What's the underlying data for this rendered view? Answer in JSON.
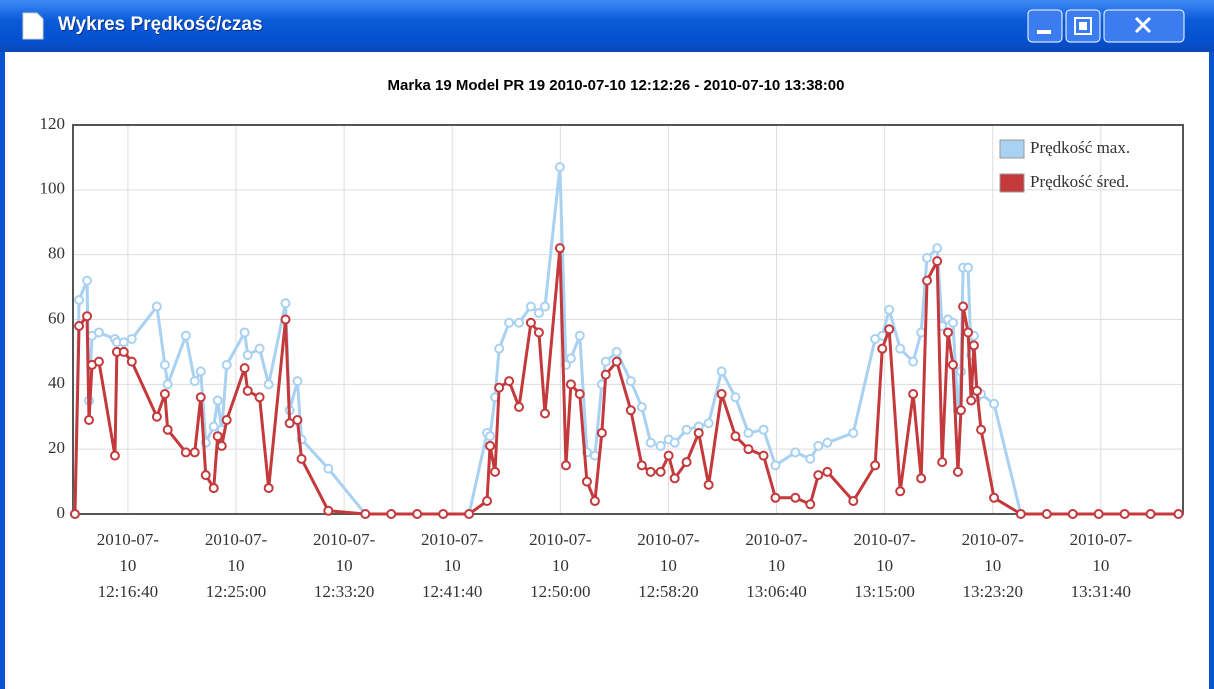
{
  "window": {
    "title": "Wykres Prędkość/czas"
  },
  "chart_data": {
    "type": "line",
    "title": "Marka 19 Model PR 19 2010-07-10 12:12:26 - 2010-07-10 13:38:00",
    "x": [
      "2010-07-10 12:12:35",
      "2010-07-10 12:12:54",
      "2010-07-10 12:13:31",
      "2010-07-10 12:13:40",
      "2010-07-10 12:13:54",
      "2010-07-10 12:14:26",
      "2010-07-10 12:15:40",
      "2010-07-10 12:15:49",
      "2010-07-10 12:16:21",
      "2010-07-10 12:16:58",
      "2010-07-10 12:18:54",
      "2010-07-10 12:19:31",
      "2010-07-10 12:19:44",
      "2010-07-10 12:21:08",
      "2010-07-10 12:21:49",
      "2010-07-10 12:22:17",
      "2010-07-10 12:22:40",
      "2010-07-10 12:23:17",
      "2010-07-10 12:23:35",
      "2010-07-10 12:23:54",
      "2010-07-10 12:24:17",
      "2010-07-10 12:25:40",
      "2010-07-10 12:25:54",
      "2010-07-10 12:26:49",
      "2010-07-10 12:27:31",
      "2010-07-10 12:28:49",
      "2010-07-10 12:29:08",
      "2010-07-10 12:29:44",
      "2010-07-10 12:30:03",
      "2010-07-10 12:32:07",
      "2010-07-10 12:34:58",
      "2010-07-10 12:36:58",
      "2010-07-10 12:38:58",
      "2010-07-10 12:40:58",
      "2010-07-10 12:42:58",
      "2010-07-10 12:44:21",
      "2010-07-10 12:44:35",
      "2010-07-10 12:44:58",
      "2010-07-10 12:45:17",
      "2010-07-10 12:46:03",
      "2010-07-10 12:46:49",
      "2010-07-10 12:47:44",
      "2010-07-10 12:48:21",
      "2010-07-10 12:48:49",
      "2010-07-10 12:49:58",
      "2010-07-10 12:50:26",
      "2010-07-10 12:50:49",
      "2010-07-10 12:51:30",
      "2010-07-10 12:52:03",
      "2010-07-10 12:52:40",
      "2010-07-10 12:53:12",
      "2010-07-10 12:53:30",
      "2010-07-10 12:54:21",
      "2010-07-10 12:55:26",
      "2010-07-10 12:56:17",
      "2010-07-10 12:56:58",
      "2010-07-10 12:57:44",
      "2010-07-10 12:58:21",
      "2010-07-10 12:58:49",
      "2010-07-10 12:59:44",
      "2010-07-10 13:00:40",
      "2010-07-10 13:01:26",
      "2010-07-10 13:02:26",
      "2010-07-10 13:03:30",
      "2010-07-10 13:04:30",
      "2010-07-10 13:05:40",
      "2010-07-10 13:06:35",
      "2010-07-10 13:08:07",
      "2010-07-10 13:09:16",
      "2010-07-10 13:09:53",
      "2010-07-10 13:10:35",
      "2010-07-10 13:12:35",
      "2010-07-10 13:14:16",
      "2010-07-10 13:14:49",
      "2010-07-10 13:15:21",
      "2010-07-10 13:16:12",
      "2010-07-10 13:17:12",
      "2010-07-10 13:17:49",
      "2010-07-10 13:18:16",
      "2010-07-10 13:19:03",
      "2010-07-10 13:19:26",
      "2010-07-10 13:19:53",
      "2010-07-10 13:20:16",
      "2010-07-10 13:20:39",
      "2010-07-10 13:20:53",
      "2010-07-10 13:21:03",
      "2010-07-10 13:21:26",
      "2010-07-10 13:21:40",
      "2010-07-10 13:21:53",
      "2010-07-10 13:22:07",
      "2010-07-10 13:22:26",
      "2010-07-10 13:23:26",
      "2010-07-10 13:25:30",
      "2010-07-10 13:27:30",
      "2010-07-10 13:29:30",
      "2010-07-10 13:31:30",
      "2010-07-10 13:33:30",
      "2010-07-10 13:35:30",
      "2010-07-10 13:37:39"
    ],
    "series": [
      {
        "name": "Prędkość max.",
        "color": "#a9d1f2",
        "values": [
          0,
          66,
          72,
          35,
          55,
          56,
          54,
          53,
          53,
          54,
          64,
          46,
          40,
          55,
          41,
          44,
          22,
          27,
          35,
          26,
          46,
          56,
          49,
          51,
          40,
          65,
          32,
          41,
          23,
          14,
          0,
          0,
          0,
          0,
          0,
          25,
          24,
          36,
          51,
          59,
          59,
          64,
          62,
          64,
          107,
          46,
          48,
          55,
          19,
          18,
          40,
          47,
          50,
          41,
          33,
          22,
          21,
          23,
          22,
          26,
          27,
          28,
          44,
          36,
          25,
          26,
          15,
          19,
          17,
          21,
          22,
          25,
          54,
          55,
          63,
          51,
          47,
          56,
          79,
          82,
          58,
          60,
          59,
          32,
          44,
          76,
          76,
          49,
          55,
          36,
          37,
          34,
          0,
          0,
          0,
          0,
          0,
          0,
          0
        ]
      },
      {
        "name": "Prędkość śred.",
        "color": "#c4393c",
        "values": [
          0,
          58,
          61,
          29,
          46,
          47,
          18,
          50,
          50,
          47,
          30,
          37,
          26,
          19,
          19,
          36,
          12,
          8,
          24,
          21,
          29,
          45,
          38,
          36,
          8,
          60,
          28,
          29,
          17,
          1,
          0,
          0,
          0,
          0,
          0,
          4,
          21,
          13,
          39,
          41,
          33,
          59,
          56,
          31,
          82,
          15,
          40,
          37,
          10,
          4,
          25,
          43,
          47,
          32,
          15,
          13,
          13,
          18,
          11,
          16,
          25,
          9,
          37,
          24,
          20,
          18,
          5,
          5,
          3,
          12,
          13,
          4,
          15,
          51,
          57,
          7,
          37,
          11,
          72,
          78,
          16,
          56,
          46,
          13,
          32,
          64,
          56,
          35,
          52,
          38,
          26,
          5,
          0,
          0,
          0,
          0,
          0,
          0,
          0
        ]
      }
    ],
    "xlim": [
      "2010-07-10 12:12:26",
      "2010-07-10 13:38:00"
    ],
    "xticks": [
      "2010-07-10 12:16:40",
      "2010-07-10 12:25:00",
      "2010-07-10 12:33:20",
      "2010-07-10 12:41:40",
      "2010-07-10 12:50:00",
      "2010-07-10 12:58:20",
      "2010-07-10 13:06:40",
      "2010-07-10 13:15:00",
      "2010-07-10 13:23:20",
      "2010-07-10 13:31:40"
    ],
    "ylim": [
      0,
      120
    ],
    "yticks": [
      0,
      20,
      40,
      60,
      80,
      100,
      120
    ],
    "grid": true,
    "legend": "top-right"
  }
}
